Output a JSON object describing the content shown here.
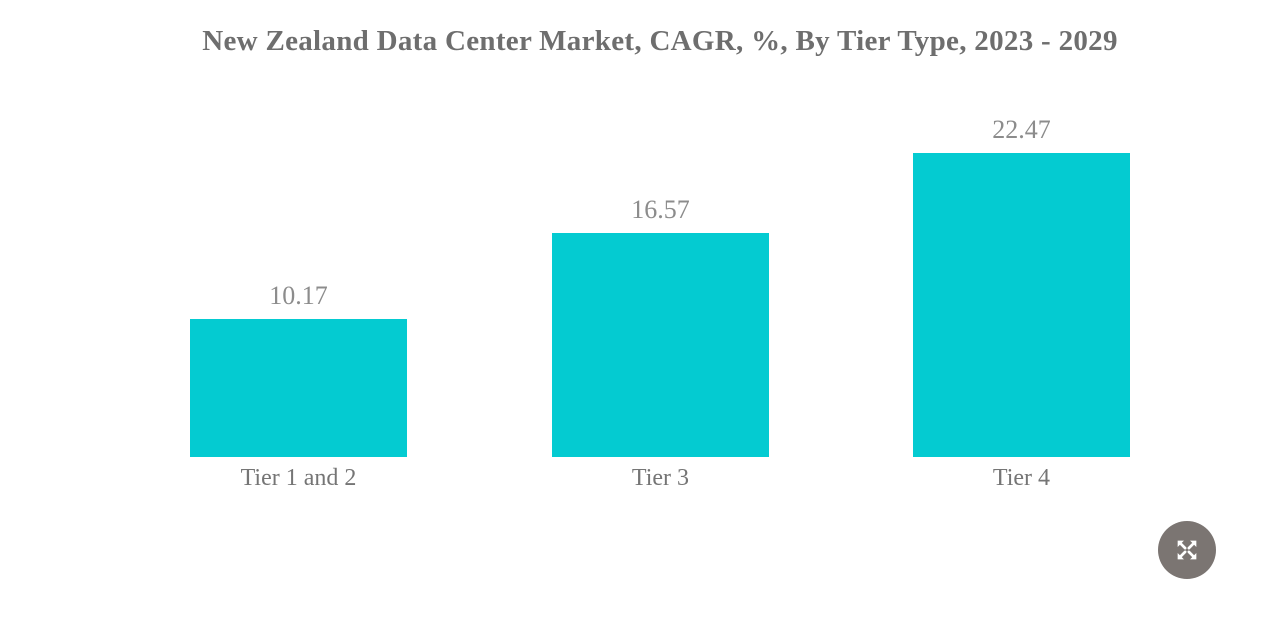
{
  "page": {
    "background": "#ffffff"
  },
  "chart_data": {
    "type": "bar",
    "title": "New Zealand Data Center Market, CAGR, %, By Tier Type, 2023 - 2029",
    "categories": [
      "Tier 1 and 2",
      "Tier 3",
      "Tier 4"
    ],
    "values": [
      10.17,
      16.57,
      22.47
    ],
    "value_labels": [
      "10.17",
      "16.57",
      "22.47"
    ],
    "xlabel": "",
    "ylabel": "",
    "ylim": [
      0,
      22.47
    ],
    "grid": false,
    "legend": "none",
    "bar_color": "#04cbd1",
    "title_color": "#6e6e6e",
    "value_label_color": "#8c8c8c",
    "tick_label_color": "#757575"
  },
  "controls": {
    "fullscreen_button": {
      "icon": "expand-arrows-icon",
      "background": "#7b7572",
      "arrow_color": "#ffffff"
    }
  }
}
